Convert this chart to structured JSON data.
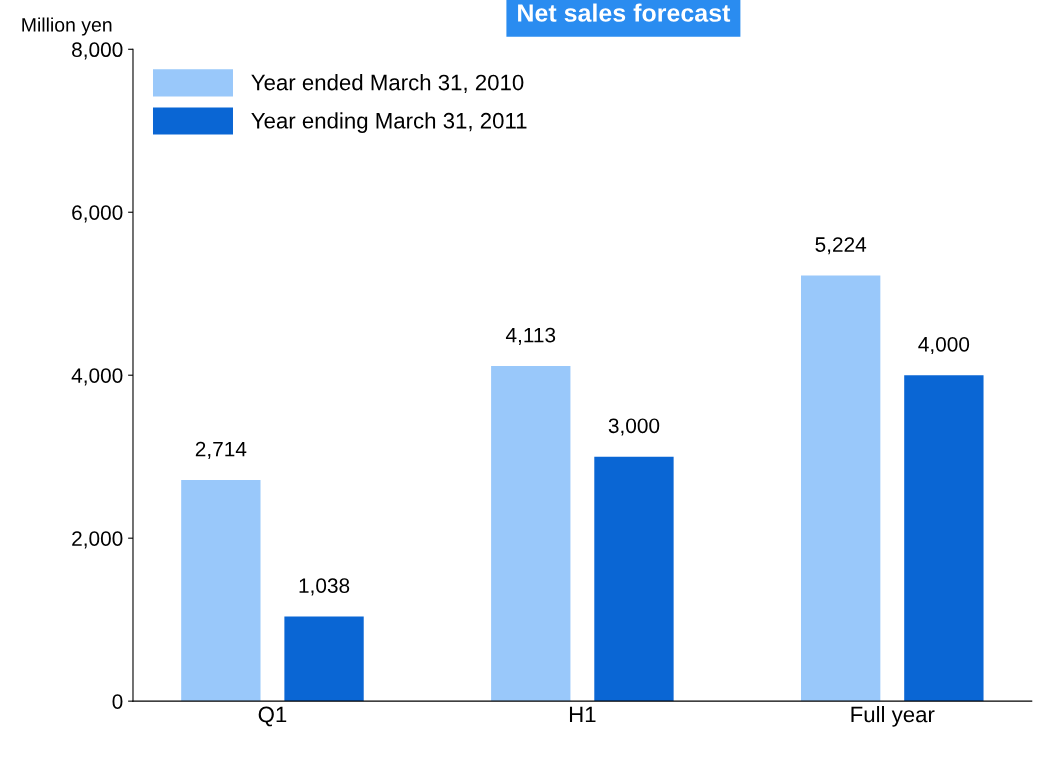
{
  "chart_data": {
    "type": "bar",
    "title": "Net sales forecast",
    "ylabel": "Million yen",
    "categories": [
      "Q1",
      "H1",
      "Full year"
    ],
    "series": [
      {
        "name": "Year ended March 31, 2010",
        "color": "#99c8fa",
        "values": [
          2714,
          4113,
          5224
        ],
        "value_labels": [
          "2,714",
          "4,113",
          "5,224"
        ]
      },
      {
        "name": "Year ending March 31, 2011",
        "color": "#0a66d4",
        "values": [
          1038,
          3000,
          4000
        ],
        "value_labels": [
          "1,038",
          "3,000",
          "4,000"
        ]
      }
    ],
    "ylim": [
      0,
      8000
    ],
    "yticks": [
      {
        "value": 0,
        "label": "0"
      },
      {
        "value": 2000,
        "label": "2,000"
      },
      {
        "value": 4000,
        "label": "4,000"
      },
      {
        "value": 6000,
        "label": "6,000"
      },
      {
        "value": 8000,
        "label": "8,000"
      }
    ],
    "legend": "top left",
    "grid": false
  }
}
